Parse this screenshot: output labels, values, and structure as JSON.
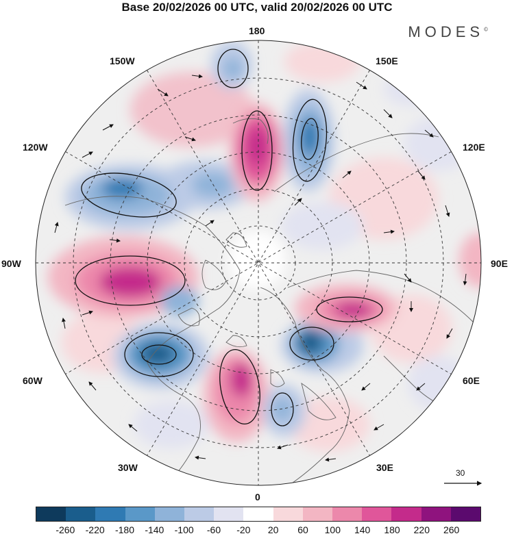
{
  "title": "Base 20/02/2026 00 UTC, valid 20/02/2026 00 UTC",
  "brand": "MODES",
  "brand_mark": "©",
  "longitude_labels": {
    "n180": "180",
    "w150": "150W",
    "e150": "150E",
    "w120": "120W",
    "e120": "120E",
    "w90": "90W",
    "e90": "90E",
    "w60": "60W",
    "e60": "60E",
    "w30": "30W",
    "e30": "30E",
    "s0": "0"
  },
  "reference_vector": "30",
  "colorbar": {
    "ticks": [
      "-260",
      "-220",
      "-180",
      "-140",
      "-100",
      "-60",
      "-20",
      "20",
      "60",
      "100",
      "140",
      "180",
      "220",
      "260"
    ],
    "colors": [
      "#0e3a5c",
      "#1a5d8c",
      "#2f7ab3",
      "#5a98c8",
      "#8fb3d9",
      "#bccbe6",
      "#e2e3f1",
      "#ffffff",
      "#f8d9dc",
      "#f3b6c3",
      "#ec88ab",
      "#e0569a",
      "#c42b8b",
      "#8f137e",
      "#5b0a6e"
    ]
  },
  "anomaly_features": [
    {
      "sign": "negative",
      "level": -140,
      "region": "Pacific near 165E"
    },
    {
      "sign": "positive",
      "level": 180,
      "region": "Bering Strait / 175W"
    },
    {
      "sign": "negative",
      "level": -140,
      "region": "Gulf of Alaska 120W"
    },
    {
      "sign": "positive",
      "level": 180,
      "region": "Hudson Bay 90W"
    },
    {
      "sign": "negative",
      "level": -220,
      "region": "Western Atlantic 60W"
    },
    {
      "sign": "positive",
      "level": 180,
      "region": "North Atlantic 20W"
    },
    {
      "sign": "negative",
      "level": -140,
      "region": "Europe 20E"
    },
    {
      "sign": "negative",
      "level": -180,
      "region": "Ural 50E"
    },
    {
      "sign": "positive",
      "level": 180,
      "region": "Siberia 80E"
    }
  ]
}
